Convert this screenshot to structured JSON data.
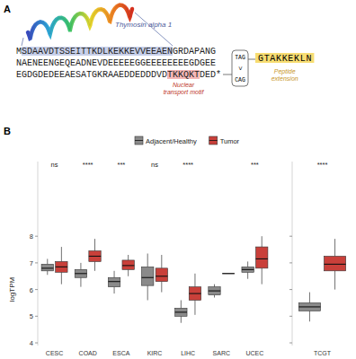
{
  "figure": {
    "panel_labels": [
      "A",
      "B"
    ]
  },
  "panel_a": {
    "thymosin_alpha_1": {
      "label": "Thymosin alpha 1",
      "sequence": "SDAAVDTSSEITTKDLKEKKEVVEEAEN"
    },
    "sequence_lines": [
      "MSDAAVDTSSEITTKDLKEKKEVVEEAENGRDAPANG",
      "NAENEENGEQEADNEVDEEEEEGGEEEEEEEEGDGEE",
      "EGDGDEDEEAESATGKRAAEDDEDDDVDTKKQKTDED*"
    ],
    "motif": {
      "label": "Nuclear transport motif",
      "sequence": "TKKQKT"
    },
    "extension": {
      "mutation_from": "TAG",
      "symbol": ">",
      "mutation_to": "CAG",
      "sequence": "GTAKKEKLN",
      "label": "Peptide extension"
    }
  },
  "chart_data": [
    {
      "type": "box",
      "ylabel": "logTPM",
      "legend": "top",
      "categories": [
        "CESC",
        "COAD",
        "ESCA",
        "KIRC",
        "LIHC",
        "SARC",
        "UCEC"
      ],
      "annotations": [
        "ns",
        "****",
        "***",
        "ns",
        "****",
        null,
        "***"
      ],
      "ylim": [
        3.9,
        10.8
      ],
      "yticks": [
        4,
        5,
        6,
        7,
        8
      ],
      "series": [
        {
          "name": "Adjacent/Healthy",
          "color": "#8a8a8a",
          "values": [
            {
              "min": 6.55,
              "q1": 6.7,
              "median": 6.8,
              "q3": 6.95,
              "max": 7.15
            },
            {
              "min": 6.1,
              "q1": 6.45,
              "median": 6.6,
              "q3": 6.75,
              "max": 7.0
            },
            {
              "min": 5.85,
              "q1": 6.1,
              "median": 6.3,
              "q3": 6.45,
              "max": 6.7
            },
            {
              "min": 5.6,
              "q1": 6.15,
              "median": 6.45,
              "q3": 6.85,
              "max": 7.35
            },
            {
              "min": 4.75,
              "q1": 5.0,
              "median": 5.15,
              "q3": 5.3,
              "max": 5.6
            },
            {
              "min": 5.7,
              "q1": 5.8,
              "median": 5.95,
              "q3": 6.1,
              "max": 6.2
            },
            {
              "min": 6.4,
              "q1": 6.65,
              "median": 6.75,
              "q3": 6.85,
              "max": 7.05
            }
          ]
        },
        {
          "name": "Tumor",
          "color": "#c9403a",
          "values": [
            {
              "min": 6.2,
              "q1": 6.65,
              "median": 6.85,
              "q3": 7.05,
              "max": 7.6
            },
            {
              "min": 6.7,
              "q1": 7.05,
              "median": 7.25,
              "q3": 7.45,
              "max": 7.9
            },
            {
              "min": 6.5,
              "q1": 6.75,
              "median": 6.9,
              "q3": 7.1,
              "max": 7.3
            },
            {
              "min": 5.9,
              "q1": 6.3,
              "median": 6.5,
              "q3": 6.8,
              "max": 7.3
            },
            {
              "min": 5.05,
              "q1": 5.6,
              "median": 5.85,
              "q3": 6.1,
              "max": 6.6
            },
            {
              "min": 6.6,
              "q1": 6.6,
              "median": 6.6,
              "q3": 6.6,
              "max": 6.6
            },
            {
              "min": 6.2,
              "q1": 6.8,
              "median": 7.15,
              "q3": 7.6,
              "max": 8.0
            }
          ]
        }
      ]
    },
    {
      "type": "box",
      "tick_labels": "x",
      "categories": [
        "TCGT"
      ],
      "annotations": [
        "****"
      ],
      "ylim": [
        3.9,
        10.8
      ],
      "yticks": [
        4,
        5,
        6,
        7,
        8
      ],
      "series": [
        {
          "color": "#8a8a8a",
          "values": [
            {
              "min": 4.8,
              "q1": 5.2,
              "median": 5.35,
              "q3": 5.5,
              "max": 5.9
            }
          ]
        },
        {
          "color": "#c9403a",
          "values": [
            {
              "min": 6.0,
              "q1": 6.7,
              "median": 6.95,
              "q3": 7.25,
              "max": 7.9
            }
          ]
        }
      ]
    }
  ]
}
